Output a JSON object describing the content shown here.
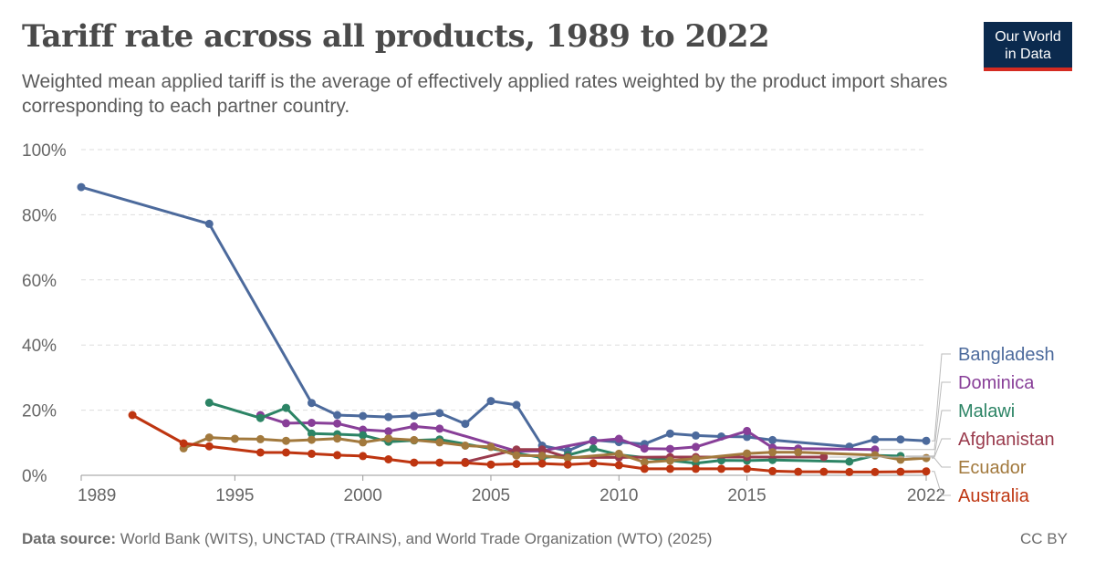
{
  "header": {
    "title": "Tariff rate across all products, 1989 to 2022",
    "subtitle": "Weighted mean applied tariff is the average of effectively applied rates weighted by the product import shares corresponding to each partner country."
  },
  "logo": {
    "line1": "Our World",
    "line2": "in Data",
    "bg": "#0b2a4e",
    "accent": "#d42b21"
  },
  "footer": {
    "source_label": "Data source:",
    "source_text": "World Bank (WITS), UNCTAD (TRAINS), and World Trade Organization (WTO) (2025)",
    "license": "CC BY"
  },
  "chart_data": {
    "type": "line",
    "xlim": [
      1989,
      2022
    ],
    "ylim": [
      0,
      100
    ],
    "x_ticks": [
      1989,
      1995,
      2000,
      2005,
      2010,
      2015,
      2022
    ],
    "y_ticks": [
      0,
      20,
      40,
      60,
      80,
      100
    ],
    "y_tick_labels": [
      "0%",
      "20%",
      "40%",
      "60%",
      "80%",
      "100%"
    ],
    "grid": true,
    "legend": "right",
    "series": [
      {
        "name": "Bangladesh",
        "color": "#4c6a9c",
        "points": [
          [
            1989,
            88.5
          ],
          [
            1994,
            77.2
          ],
          [
            1998,
            22.2
          ],
          [
            1999,
            18.5
          ],
          [
            2000,
            18.2
          ],
          [
            2001,
            17.9
          ],
          [
            2002,
            18.3
          ],
          [
            2003,
            19.1
          ],
          [
            2004,
            15.8
          ],
          [
            2005,
            22.8
          ],
          [
            2006,
            21.6
          ],
          [
            2007,
            9.1
          ],
          [
            2008,
            7.5
          ],
          [
            2009,
            10.8
          ],
          [
            2010,
            10.2
          ],
          [
            2011,
            9.6
          ],
          [
            2012,
            12.8
          ],
          [
            2013,
            12.2
          ],
          [
            2014,
            11.9
          ],
          [
            2015,
            11.8
          ],
          [
            2016,
            10.8
          ],
          [
            2019,
            8.8
          ],
          [
            2020,
            11.0
          ],
          [
            2021,
            11.0
          ],
          [
            2022,
            10.6
          ]
        ]
      },
      {
        "name": "Dominica",
        "color": "#883f98",
        "points": [
          [
            1996,
            18.5
          ],
          [
            1997,
            16.0
          ],
          [
            1998,
            16.1
          ],
          [
            1999,
            15.9
          ],
          [
            2000,
            14.0
          ],
          [
            2001,
            13.5
          ],
          [
            2002,
            15.0
          ],
          [
            2003,
            14.3
          ],
          [
            2006,
            7.4
          ],
          [
            2007,
            7.5
          ],
          [
            2009,
            10.5
          ],
          [
            2010,
            11.2
          ],
          [
            2011,
            8.2
          ],
          [
            2012,
            8.1
          ],
          [
            2013,
            8.7
          ],
          [
            2015,
            13.6
          ],
          [
            2016,
            8.5
          ],
          [
            2017,
            8.2
          ],
          [
            2020,
            7.9
          ]
        ]
      },
      {
        "name": "Malawi",
        "color": "#2c8465",
        "points": [
          [
            1994,
            22.3
          ],
          [
            1996,
            17.6
          ],
          [
            1997,
            20.7
          ],
          [
            1998,
            12.8
          ],
          [
            1999,
            12.6
          ],
          [
            2000,
            12.3
          ],
          [
            2001,
            10.3
          ],
          [
            2002,
            10.7
          ],
          [
            2003,
            11.0
          ],
          [
            2007,
            5.4
          ],
          [
            2008,
            6.2
          ],
          [
            2009,
            8.2
          ],
          [
            2010,
            6.3
          ],
          [
            2013,
            3.7
          ],
          [
            2014,
            4.6
          ],
          [
            2015,
            4.5
          ],
          [
            2016,
            4.7
          ],
          [
            2019,
            4.2
          ],
          [
            2020,
            6.1
          ],
          [
            2021,
            5.9
          ]
        ]
      },
      {
        "name": "Afghanistan",
        "color": "#9a3b4d",
        "points": [
          [
            2004,
            4.1
          ],
          [
            2006,
            7.9
          ],
          [
            2007,
            7.9
          ],
          [
            2008,
            5.5
          ],
          [
            2010,
            5.5
          ],
          [
            2012,
            5.6
          ],
          [
            2013,
            5.6
          ],
          [
            2015,
            5.6
          ],
          [
            2018,
            5.6
          ]
        ]
      },
      {
        "name": "Ecuador",
        "color": "#a2793d",
        "points": [
          [
            1993,
            8.3
          ],
          [
            1994,
            11.6
          ],
          [
            1995,
            11.2
          ],
          [
            1996,
            11.1
          ],
          [
            1997,
            10.6
          ],
          [
            1998,
            10.9
          ],
          [
            1999,
            11.3
          ],
          [
            2000,
            10.1
          ],
          [
            2001,
            11.3
          ],
          [
            2002,
            10.8
          ],
          [
            2003,
            10.1
          ],
          [
            2004,
            9.1
          ],
          [
            2005,
            8.7
          ],
          [
            2006,
            6.1
          ],
          [
            2007,
            6.0
          ],
          [
            2008,
            5.3
          ],
          [
            2010,
            6.6
          ],
          [
            2011,
            4.0
          ],
          [
            2012,
            4.5
          ],
          [
            2013,
            5.1
          ],
          [
            2015,
            6.7
          ],
          [
            2016,
            7.1
          ],
          [
            2017,
            7.1
          ],
          [
            2020,
            6.2
          ],
          [
            2021,
            4.8
          ],
          [
            2022,
            5.3
          ]
        ]
      },
      {
        "name": "Australia",
        "color": "#be3510",
        "points": [
          [
            1991,
            18.5
          ],
          [
            1993,
            9.8
          ],
          [
            1994,
            8.9
          ],
          [
            1996,
            7.0
          ],
          [
            1997,
            7.0
          ],
          [
            1998,
            6.6
          ],
          [
            1999,
            6.2
          ],
          [
            2000,
            5.9
          ],
          [
            2001,
            4.9
          ],
          [
            2002,
            3.9
          ],
          [
            2003,
            3.9
          ],
          [
            2004,
            3.8
          ],
          [
            2005,
            3.3
          ],
          [
            2006,
            3.5
          ],
          [
            2007,
            3.6
          ],
          [
            2008,
            3.3
          ],
          [
            2009,
            3.7
          ],
          [
            2010,
            3.1
          ],
          [
            2011,
            2.0
          ],
          [
            2012,
            2.0
          ],
          [
            2013,
            2.0
          ],
          [
            2014,
            2.0
          ],
          [
            2015,
            2.0
          ],
          [
            2016,
            1.3
          ],
          [
            2017,
            1.1
          ],
          [
            2018,
            1.1
          ],
          [
            2019,
            1.0
          ],
          [
            2020,
            1.0
          ],
          [
            2021,
            1.1
          ],
          [
            2022,
            1.2
          ]
        ]
      }
    ]
  }
}
